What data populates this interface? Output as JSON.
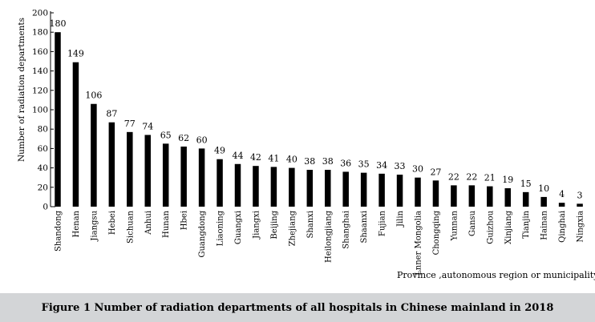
{
  "caption": "Figure 1   Number of radiation departments of all hospitals in Chinese mainland in 2018",
  "chart_data": {
    "type": "bar",
    "title": "",
    "xlabel": "Province ,autonomous region or municipality",
    "ylabel": "Number of radiation departments",
    "ylim": [
      0,
      200
    ],
    "yticks": [
      0,
      20,
      40,
      60,
      80,
      100,
      120,
      140,
      160,
      180,
      200
    ],
    "grid": false,
    "categories": [
      "Shandong",
      "Henan",
      "Jiangsu",
      "Hebei",
      "Sichuan",
      "Anhui",
      "Hunan",
      "Hbei",
      "Guangdong",
      "Liaoning",
      "Guangxi",
      "Jiangxi",
      "Beijing",
      "Zhejiang",
      "Shanxi",
      "Heilongjiang",
      "Shanghai",
      "Shaanxi",
      "Fujian",
      "Jilin",
      "Lnner Mongolia",
      "Chongqing",
      "Yunnan",
      "Gansu",
      "Guizhou",
      "Xinjiang",
      "Tianjin",
      "Hainan",
      "Qinghai",
      "Ningxia"
    ],
    "values": [
      180,
      149,
      106,
      87,
      77,
      74,
      65,
      62,
      60,
      49,
      44,
      42,
      41,
      40,
      38,
      38,
      36,
      35,
      34,
      33,
      30,
      27,
      22,
      22,
      21,
      19,
      15,
      10,
      4,
      3
    ],
    "bar_color": "#000000"
  }
}
